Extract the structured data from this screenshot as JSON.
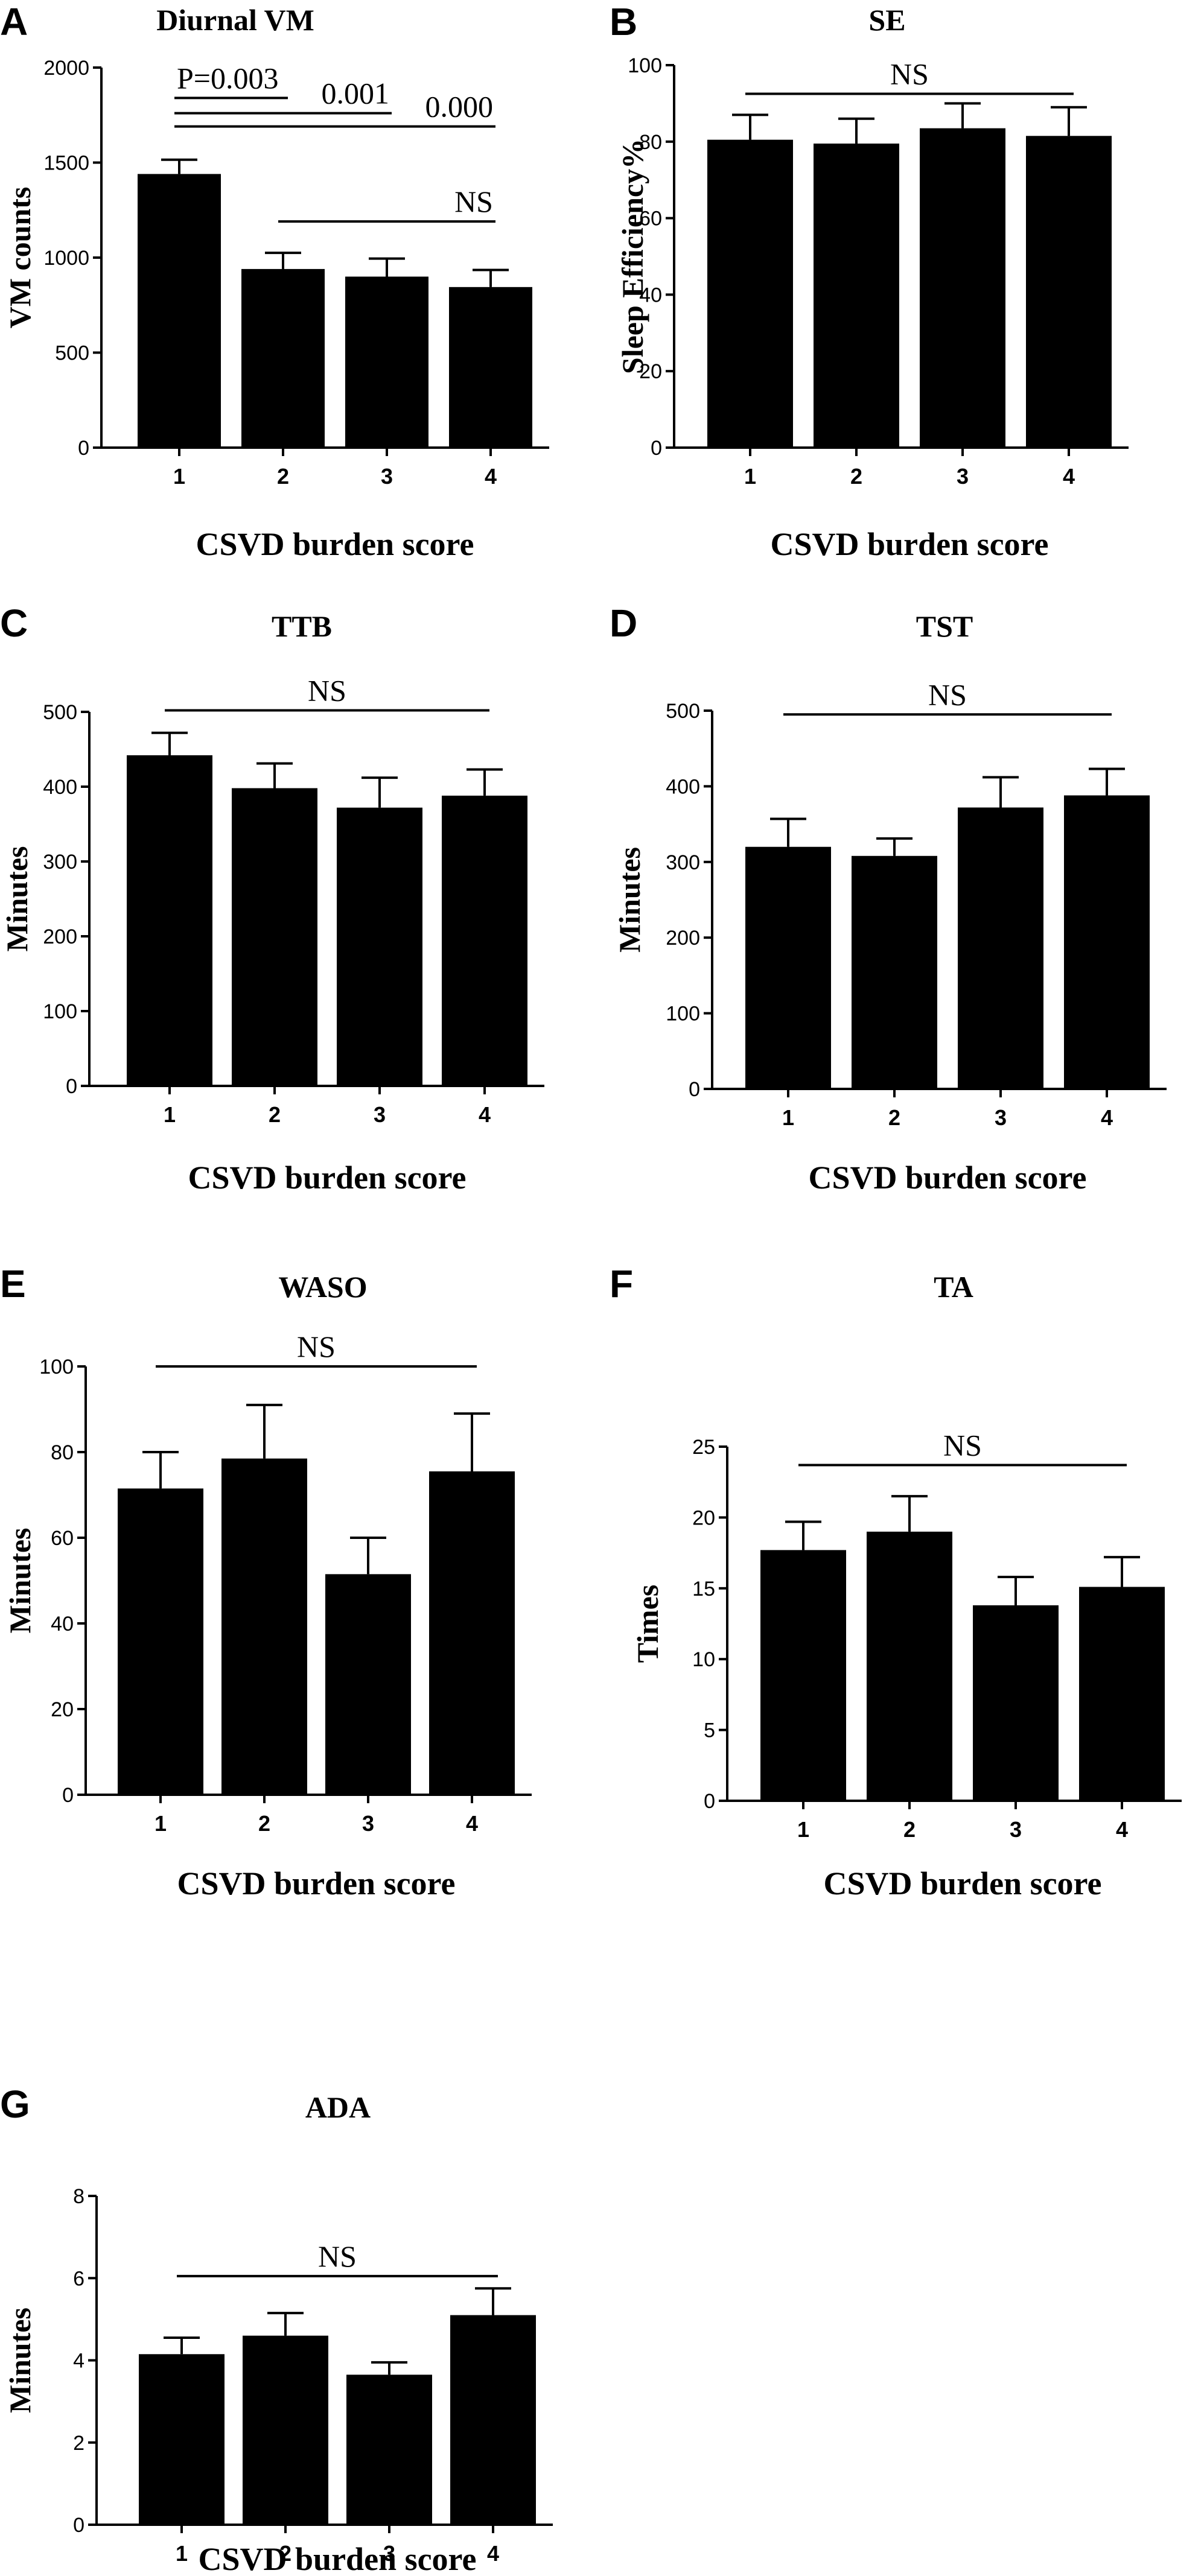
{
  "chart_data": [
    {
      "panel": "A",
      "type": "bar",
      "title": "Diurnal VM",
      "xlabel": "CSVD burden score",
      "ylabel": "VM counts",
      "categories": [
        "1",
        "2",
        "3",
        "4"
      ],
      "values": [
        1440,
        940,
        900,
        845
      ],
      "errors": [
        75,
        85,
        95,
        90
      ],
      "ylim": [
        0,
        2000
      ],
      "yticks": [
        "0",
        "500",
        "1000",
        "1500",
        "2000"
      ],
      "annotations": [
        {
          "text": "P=0.003",
          "from": 1,
          "to": 2,
          "y": 1840
        },
        {
          "text": "0.001",
          "from": 1,
          "to": 3,
          "y": 1760
        },
        {
          "text": "0.000",
          "from": 1,
          "to": 4,
          "y": 1690
        },
        {
          "text": "NS",
          "from": 2,
          "to": 4,
          "y": 1190
        }
      ]
    },
    {
      "panel": "B",
      "type": "bar",
      "title": "SE",
      "xlabel": "CSVD burden score",
      "ylabel": "Sleep Efficiency%",
      "categories": [
        "1",
        "2",
        "3",
        "4"
      ],
      "values": [
        80.5,
        79.5,
        83.5,
        81.5
      ],
      "errors": [
        6.5,
        6.5,
        6.5,
        7.5
      ],
      "ylim": [
        0,
        100
      ],
      "yticks": [
        "0",
        "20",
        "40",
        "60",
        "80",
        "100"
      ],
      "annotations": [
        {
          "text": "NS",
          "from": 1,
          "to": 4,
          "y": 92.5
        }
      ]
    },
    {
      "panel": "C",
      "type": "bar",
      "title": "TTB",
      "xlabel": "CSVD burden score",
      "ylabel": "Minutes",
      "categories": [
        "1",
        "2",
        "3",
        "4"
      ],
      "values": [
        442,
        398,
        372,
        388
      ],
      "errors": [
        30,
        33,
        40,
        35
      ],
      "ylim": [
        0,
        500
      ],
      "yticks": [
        "0",
        "100",
        "200",
        "300",
        "400",
        "500"
      ],
      "annotations": [
        {
          "text": "NS",
          "from": 1,
          "to": 4,
          "y": 502
        }
      ]
    },
    {
      "panel": "D",
      "type": "bar",
      "title": "TST",
      "xlabel": "CSVD burden score",
      "ylabel": "Minutes",
      "categories": [
        "1",
        "2",
        "3",
        "4"
      ],
      "values": [
        320,
        308,
        372,
        388
      ],
      "errors": [
        37,
        23,
        40,
        35
      ],
      "ylim": [
        0,
        500
      ],
      "yticks": [
        "0",
        "100",
        "200",
        "300",
        "400",
        "500"
      ],
      "annotations": [
        {
          "text": "NS",
          "from": 1,
          "to": 4,
          "y": 495
        }
      ]
    },
    {
      "panel": "E",
      "type": "bar",
      "title": "WASO",
      "xlabel": "CSVD burden score",
      "ylabel": "Minutes",
      "categories": [
        "1",
        "2",
        "3",
        "4"
      ],
      "values": [
        71.5,
        78.5,
        51.5,
        75.5
      ],
      "errors": [
        8.5,
        12.5,
        8.5,
        13.5
      ],
      "ylim": [
        0,
        100
      ],
      "yticks": [
        "0",
        "20",
        "40",
        "60",
        "80",
        "100"
      ],
      "annotations": [
        {
          "text": "NS",
          "from": 1,
          "to": 4,
          "y": 100
        }
      ]
    },
    {
      "panel": "F",
      "type": "bar",
      "title": "TA",
      "xlabel": "CSVD burden score",
      "ylabel": "Times",
      "categories": [
        "1",
        "2",
        "3",
        "4"
      ],
      "values": [
        17.7,
        19.0,
        13.8,
        15.1
      ],
      "errors": [
        2.0,
        2.5,
        2.0,
        2.1
      ],
      "ylim": [
        0,
        25
      ],
      "yticks": [
        "0",
        "5",
        "10",
        "15",
        "20",
        "25"
      ],
      "annotations": [
        {
          "text": "NS",
          "from": 1,
          "to": 4,
          "y": 23.7
        }
      ]
    },
    {
      "panel": "G",
      "type": "bar",
      "title": "ADA",
      "xlabel": "CSVD burden score",
      "ylabel": "Minutes",
      "categories": [
        "1",
        "2",
        "3",
        "4"
      ],
      "values": [
        4.15,
        4.6,
        3.65,
        5.1
      ],
      "errors": [
        0.4,
        0.55,
        0.3,
        0.65
      ],
      "ylim": [
        0,
        8
      ],
      "yticks": [
        "0",
        "2",
        "4",
        "6",
        "8"
      ],
      "annotations": [
        {
          "text": "NS",
          "from": 1,
          "to": 4,
          "y": 6.05
        }
      ]
    }
  ]
}
